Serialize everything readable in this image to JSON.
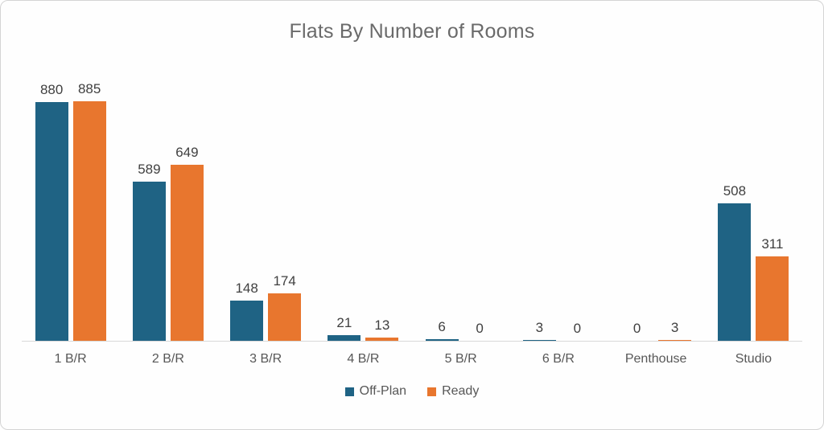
{
  "chart_data": {
    "type": "bar",
    "title": "Flats By Number of Rooms",
    "categories": [
      "1 B/R",
      "2 B/R",
      "3 B/R",
      "4 B/R",
      "5 B/R",
      "6 B/R",
      "Penthouse",
      "Studio"
    ],
    "series": [
      {
        "name": "Off-Plan",
        "color": "#1F6384",
        "values": [
          880,
          589,
          148,
          21,
          6,
          3,
          0,
          508
        ]
      },
      {
        "name": "Ready",
        "color": "#E8762E",
        "values": [
          885,
          649,
          174,
          13,
          0,
          0,
          3,
          311
        ]
      }
    ],
    "ylim": [
      0,
      1000
    ],
    "grid": false,
    "value_labels": true,
    "legend_position": "bottom",
    "styles": {
      "title_color": "#6a6a6a",
      "value_label_color": "#404040",
      "axis_label_color": "#575757",
      "axis_line_color": "#d9d9d9",
      "card_border_color": "#d4d4d4",
      "background": "#fefefe"
    }
  }
}
